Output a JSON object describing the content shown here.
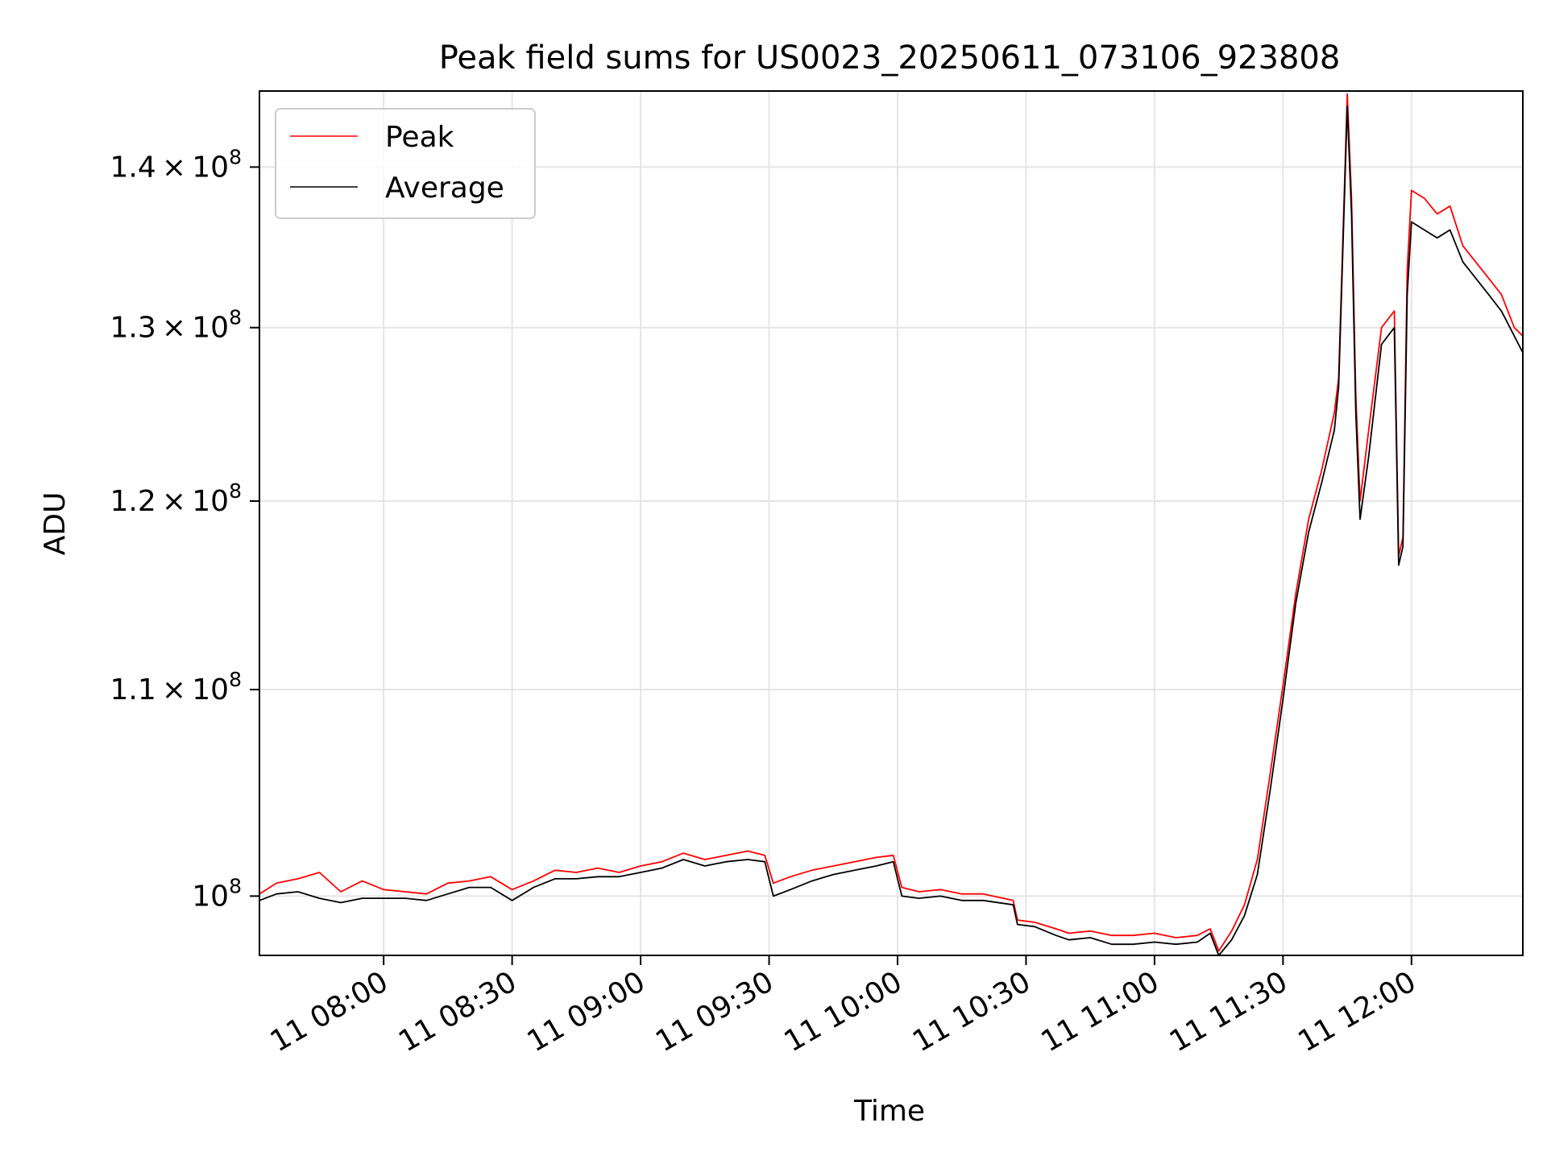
{
  "chart_data": {
    "type": "line",
    "title": "Peak field sums for US0023_20250611_073106_923808",
    "xlabel": "Time",
    "ylabel": "ADU",
    "y_scale": "log",
    "grid": true,
    "legend_position": "upper-left",
    "x_range": [
      "2025-06-11 07:31",
      "2025-06-11 12:26"
    ],
    "ylim": [
      97300000,
      145000000
    ],
    "x_ticks": [
      "2025-06-11 08:00",
      "2025-06-11 08:30",
      "2025-06-11 09:00",
      "2025-06-11 09:30",
      "2025-06-11 10:00",
      "2025-06-11 10:30",
      "2025-06-11 11:00",
      "2025-06-11 11:30",
      "2025-06-11 12:00"
    ],
    "x_tick_labels": [
      "11 08:00",
      "11 08:30",
      "11 09:00",
      "11 09:30",
      "11 10:00",
      "11 10:30",
      "11 11:00",
      "11 11:30",
      "11 12:00"
    ],
    "y_ticks": [
      {
        "value": 100000000,
        "mantissa": "",
        "exp": "8"
      },
      {
        "value": 110000000,
        "mantissa": "1.1",
        "exp": "8"
      },
      {
        "value": 120000000,
        "mantissa": "1.2",
        "exp": "8"
      },
      {
        "value": 130000000,
        "mantissa": "1.3",
        "exp": "8"
      },
      {
        "value": 140000000,
        "mantissa": "1.4",
        "exp": "8"
      }
    ],
    "series": [
      {
        "name": "Peak",
        "color": "#ff0000",
        "x": [
          "2025-06-11 07:31",
          "2025-06-11 07:35",
          "2025-06-11 07:40",
          "2025-06-11 07:45",
          "2025-06-11 07:50",
          "2025-06-11 07:55",
          "2025-06-11 08:00",
          "2025-06-11 08:05",
          "2025-06-11 08:10",
          "2025-06-11 08:15",
          "2025-06-11 08:20",
          "2025-06-11 08:25",
          "2025-06-11 08:30",
          "2025-06-11 08:35",
          "2025-06-11 08:40",
          "2025-06-11 08:45",
          "2025-06-11 08:50",
          "2025-06-11 08:55",
          "2025-06-11 09:00",
          "2025-06-11 09:05",
          "2025-06-11 09:10",
          "2025-06-11 09:15",
          "2025-06-11 09:20",
          "2025-06-11 09:25",
          "2025-06-11 09:29",
          "2025-06-11 09:31",
          "2025-06-11 09:35",
          "2025-06-11 09:40",
          "2025-06-11 09:45",
          "2025-06-11 09:50",
          "2025-06-11 09:55",
          "2025-06-11 09:59",
          "2025-06-11 10:01",
          "2025-06-11 10:05",
          "2025-06-11 10:10",
          "2025-06-11 10:15",
          "2025-06-11 10:20",
          "2025-06-11 10:27",
          "2025-06-11 10:28",
          "2025-06-11 10:32",
          "2025-06-11 10:37",
          "2025-06-11 10:40",
          "2025-06-11 10:45",
          "2025-06-11 10:50",
          "2025-06-11 10:55",
          "2025-06-11 11:00",
          "2025-06-11 11:05",
          "2025-06-11 11:10",
          "2025-06-11 11:13",
          "2025-06-11 11:15",
          "2025-06-11 11:18",
          "2025-06-11 11:21",
          "2025-06-11 11:24",
          "2025-06-11 11:27",
          "2025-06-11 11:30",
          "2025-06-11 11:33",
          "2025-06-11 11:36",
          "2025-06-11 11:39",
          "2025-06-11 11:42",
          "2025-06-11 11:43",
          "2025-06-11 11:45",
          "2025-06-11 11:46",
          "2025-06-11 11:47",
          "2025-06-11 11:48",
          "2025-06-11 11:50",
          "2025-06-11 11:53",
          "2025-06-11 11:56",
          "2025-06-11 11:57",
          "2025-06-11 11:58",
          "2025-06-11 11:59",
          "2025-06-11 12:00",
          "2025-06-11 12:03",
          "2025-06-11 12:06",
          "2025-06-11 12:09",
          "2025-06-11 12:12",
          "2025-06-11 12:15",
          "2025-06-11 12:18",
          "2025-06-11 12:21",
          "2025-06-11 12:24",
          "2025-06-11 12:26"
        ],
        "y": [
          100100000,
          100600000,
          100800000,
          101100000,
          100200000,
          100700000,
          100300000,
          100200000,
          100100000,
          100600000,
          100700000,
          100900000,
          100300000,
          100700000,
          101200000,
          101100000,
          101300000,
          101100000,
          101400000,
          101600000,
          102000000,
          101700000,
          101900000,
          102100000,
          101900000,
          100600000,
          100900000,
          101200000,
          101400000,
          101600000,
          101800000,
          101900000,
          100400000,
          100200000,
          100300000,
          100100000,
          100100000,
          99800000,
          98900000,
          98800000,
          98500000,
          98300000,
          98400000,
          98200000,
          98200000,
          98300000,
          98100000,
          98200000,
          98500000,
          97500000,
          98400000,
          99600000,
          101700000,
          105800000,
          110200000,
          115000000,
          119000000,
          121700000,
          125000000,
          127000000,
          144800000,
          138000000,
          126000000,
          120000000,
          124000000,
          130000000,
          131000000,
          117000000,
          118000000,
          133500000,
          138500000,
          138000000,
          137000000,
          137500000,
          135000000,
          134000000,
          133000000,
          132000000,
          130000000,
          129500000
        ]
      },
      {
        "name": "Average",
        "color": "#000000",
        "x": [
          "2025-06-11 07:31",
          "2025-06-11 07:35",
          "2025-06-11 07:40",
          "2025-06-11 07:45",
          "2025-06-11 07:50",
          "2025-06-11 07:55",
          "2025-06-11 08:00",
          "2025-06-11 08:05",
          "2025-06-11 08:10",
          "2025-06-11 08:15",
          "2025-06-11 08:20",
          "2025-06-11 08:25",
          "2025-06-11 08:30",
          "2025-06-11 08:35",
          "2025-06-11 08:40",
          "2025-06-11 08:45",
          "2025-06-11 08:50",
          "2025-06-11 08:55",
          "2025-06-11 09:00",
          "2025-06-11 09:05",
          "2025-06-11 09:10",
          "2025-06-11 09:15",
          "2025-06-11 09:20",
          "2025-06-11 09:25",
          "2025-06-11 09:29",
          "2025-06-11 09:31",
          "2025-06-11 09:35",
          "2025-06-11 09:40",
          "2025-06-11 09:45",
          "2025-06-11 09:50",
          "2025-06-11 09:55",
          "2025-06-11 09:59",
          "2025-06-11 10:01",
          "2025-06-11 10:05",
          "2025-06-11 10:10",
          "2025-06-11 10:15",
          "2025-06-11 10:20",
          "2025-06-11 10:27",
          "2025-06-11 10:28",
          "2025-06-11 10:32",
          "2025-06-11 10:37",
          "2025-06-11 10:40",
          "2025-06-11 10:45",
          "2025-06-11 10:50",
          "2025-06-11 10:55",
          "2025-06-11 11:00",
          "2025-06-11 11:05",
          "2025-06-11 11:10",
          "2025-06-11 11:13",
          "2025-06-11 11:15",
          "2025-06-11 11:18",
          "2025-06-11 11:21",
          "2025-06-11 11:24",
          "2025-06-11 11:27",
          "2025-06-11 11:30",
          "2025-06-11 11:33",
          "2025-06-11 11:36",
          "2025-06-11 11:39",
          "2025-06-11 11:42",
          "2025-06-11 11:43",
          "2025-06-11 11:45",
          "2025-06-11 11:46",
          "2025-06-11 11:47",
          "2025-06-11 11:48",
          "2025-06-11 11:50",
          "2025-06-11 11:53",
          "2025-06-11 11:56",
          "2025-06-11 11:57",
          "2025-06-11 11:58",
          "2025-06-11 11:59",
          "2025-06-11 12:00",
          "2025-06-11 12:03",
          "2025-06-11 12:06",
          "2025-06-11 12:09",
          "2025-06-11 12:12",
          "2025-06-11 12:15",
          "2025-06-11 12:18",
          "2025-06-11 12:21",
          "2025-06-11 12:24",
          "2025-06-11 12:26"
        ],
        "y": [
          99800000,
          100100000,
          100200000,
          99900000,
          99700000,
          99900000,
          99900000,
          99900000,
          99800000,
          100100000,
          100400000,
          100400000,
          99800000,
          100400000,
          100800000,
          100800000,
          100900000,
          100900000,
          101100000,
          101300000,
          101700000,
          101400000,
          101600000,
          101700000,
          101600000,
          100000000,
          100300000,
          100700000,
          101000000,
          101200000,
          101400000,
          101600000,
          100000000,
          99900000,
          100000000,
          99800000,
          99800000,
          99600000,
          98700000,
          98600000,
          98200000,
          98000000,
          98100000,
          97800000,
          97800000,
          97900000,
          97800000,
          97900000,
          98300000,
          97300000,
          98000000,
          99100000,
          101000000,
          105000000,
          109500000,
          114500000,
          118300000,
          121000000,
          124000000,
          126500000,
          144000000,
          137000000,
          125000000,
          119000000,
          122500000,
          129000000,
          130000000,
          116500000,
          117500000,
          132000000,
          136500000,
          136000000,
          135500000,
          136000000,
          134000000,
          133000000,
          132000000,
          131000000,
          129500000,
          128500000
        ]
      }
    ]
  }
}
